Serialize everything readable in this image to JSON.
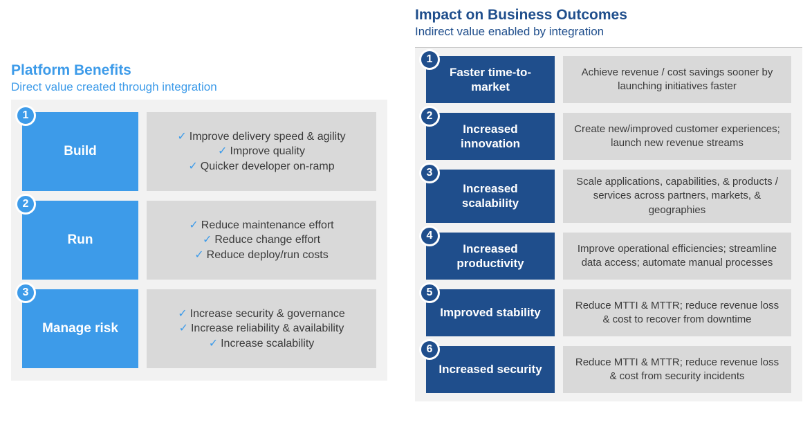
{
  "colors": {
    "left_accent": "#3d9be9",
    "right_accent": "#1f4e8c",
    "panel_bg": "#f2f2f2",
    "content_bg": "#d9d9d9",
    "text": "#3a3a3a",
    "white": "#ffffff"
  },
  "left": {
    "title": "Platform Benefits",
    "subtitle": "Direct value created through integration",
    "rows": [
      {
        "num": "1",
        "label": "Build",
        "items": [
          "Improve delivery speed & agility",
          "Improve quality",
          "Quicker developer on-ramp"
        ]
      },
      {
        "num": "2",
        "label": "Run",
        "items": [
          "Reduce maintenance effort",
          "Reduce change effort",
          "Reduce deploy/run costs"
        ]
      },
      {
        "num": "3",
        "label": "Manage risk",
        "items": [
          "Increase security & governance",
          "Increase reliability & availability",
          "Increase scalability"
        ]
      }
    ]
  },
  "right": {
    "title": "Impact on Business Outcomes",
    "subtitle": "Indirect value enabled by integration",
    "rows": [
      {
        "num": "1",
        "label": "Faster time-to-market",
        "desc": "Achieve revenue / cost savings sooner by launching initiatives faster"
      },
      {
        "num": "2",
        "label": "Increased innovation",
        "desc": "Create new/improved customer experiences; launch new revenue streams"
      },
      {
        "num": "3",
        "label": "Increased scalability",
        "desc": "Scale applications, capabilities, & products / services across partners, markets, & geographies"
      },
      {
        "num": "4",
        "label": "Increased productivity",
        "desc": "Improve operational efficiencies; streamline data access; automate manual processes"
      },
      {
        "num": "5",
        "label": "Improved stability",
        "desc": "Reduce MTTI & MTTR; reduce revenue loss & cost to recover from downtime"
      },
      {
        "num": "6",
        "label": "Increased security",
        "desc": "Reduce MTTI & MTTR; reduce revenue loss & cost from security incidents"
      }
    ]
  }
}
